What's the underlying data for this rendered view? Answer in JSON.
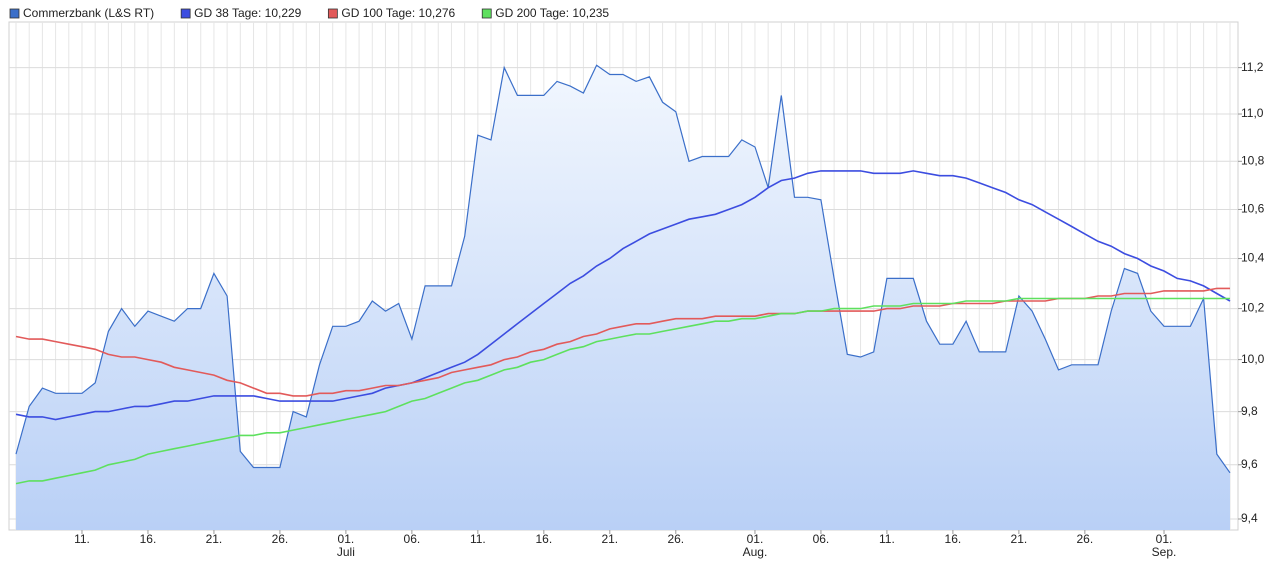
{
  "chart_data": {
    "type": "line",
    "ylog": true,
    "grid": true,
    "legend": "top-left",
    "ylim": [
      9.36,
      11.4
    ],
    "yticks": [
      {
        "value": 9.4,
        "label": "9,4"
      },
      {
        "value": 9.6,
        "label": "9,6"
      },
      {
        "value": 9.8,
        "label": "9,8"
      },
      {
        "value": 10.0,
        "label": "10,0"
      },
      {
        "value": 10.2,
        "label": "10,2"
      },
      {
        "value": 10.4,
        "label": "10,4"
      },
      {
        "value": 10.6,
        "label": "10,6"
      },
      {
        "value": 10.8,
        "label": "10,8"
      },
      {
        "value": 11.0,
        "label": "11,0"
      },
      {
        "value": 11.2,
        "label": "11,2"
      }
    ],
    "categories": [
      null,
      null,
      null,
      null,
      null,
      "11.",
      null,
      null,
      null,
      null,
      "16.",
      null,
      null,
      null,
      null,
      "21.",
      null,
      null,
      null,
      null,
      "26.",
      null,
      null,
      null,
      null,
      "01.",
      null,
      null,
      null,
      null,
      "06.",
      null,
      null,
      null,
      null,
      "11.",
      null,
      null,
      null,
      null,
      "16.",
      null,
      null,
      null,
      null,
      "21.",
      null,
      null,
      null,
      null,
      "26.",
      null,
      null,
      null,
      null,
      null,
      "01.",
      null,
      null,
      null,
      null,
      "06.",
      null,
      null,
      null,
      null,
      "11.",
      null,
      null,
      null,
      null,
      "16.",
      null,
      null,
      null,
      null,
      "21.",
      null,
      null,
      null,
      null,
      "26.",
      null,
      null,
      null,
      null,
      null,
      "01.",
      null,
      null,
      null,
      null,
      null
    ],
    "months": [
      null,
      null,
      null,
      null,
      null,
      null,
      null,
      null,
      null,
      null,
      null,
      null,
      null,
      null,
      null,
      null,
      null,
      null,
      null,
      null,
      null,
      null,
      null,
      null,
      null,
      "Juli",
      null,
      null,
      null,
      null,
      null,
      null,
      null,
      null,
      null,
      null,
      null,
      null,
      null,
      null,
      null,
      null,
      null,
      null,
      null,
      null,
      null,
      null,
      null,
      null,
      null,
      null,
      null,
      null,
      null,
      null,
      "Aug.",
      null,
      null,
      null,
      null,
      null,
      null,
      null,
      null,
      null,
      null,
      null,
      null,
      null,
      null,
      null,
      null,
      null,
      null,
      null,
      null,
      null,
      null,
      null,
      null,
      null,
      null,
      null,
      null,
      null,
      null,
      "Sep.",
      null,
      null,
      null,
      null,
      null
    ],
    "series": [
      {
        "name": "Commerzbank (L&S RT)",
        "color": "#3b6fc9",
        "area": true,
        "values": [
          9.64,
          9.82,
          9.89,
          9.87,
          9.87,
          9.87,
          9.91,
          10.11,
          10.2,
          10.13,
          10.19,
          10.17,
          10.15,
          10.2,
          10.2,
          10.34,
          10.25,
          9.65,
          9.59,
          9.59,
          9.59,
          9.8,
          9.78,
          9.98,
          10.13,
          10.13,
          10.15,
          10.23,
          10.19,
          10.22,
          10.08,
          10.29,
          10.29,
          10.29,
          10.49,
          10.91,
          10.89,
          11.2,
          11.08,
          11.08,
          11.08,
          11.14,
          11.12,
          11.09,
          11.21,
          11.17,
          11.17,
          11.14,
          11.16,
          11.05,
          11.01,
          10.8,
          10.82,
          10.82,
          10.82,
          10.89,
          10.86,
          10.69,
          11.08,
          10.65,
          10.65,
          10.64,
          10.32,
          10.02,
          10.01,
          10.03,
          10.32,
          10.32,
          10.32,
          10.15,
          10.06,
          10.06,
          10.15,
          10.03,
          10.03,
          10.03,
          10.25,
          10.19,
          10.08,
          9.96,
          9.98,
          9.98,
          9.98,
          10.19,
          10.36,
          10.34,
          10.19,
          10.13,
          10.13,
          10.13,
          10.24,
          9.64,
          9.57
        ]
      },
      {
        "name": "GD 38 Tage: 10,229",
        "color": "#3c4de0",
        "values": [
          9.79,
          9.78,
          9.78,
          9.77,
          9.78,
          9.79,
          9.8,
          9.8,
          9.81,
          9.82,
          9.82,
          9.83,
          9.84,
          9.84,
          9.85,
          9.86,
          9.86,
          9.86,
          9.86,
          9.85,
          9.84,
          9.84,
          9.84,
          9.84,
          9.84,
          9.85,
          9.86,
          9.87,
          9.89,
          9.9,
          9.91,
          9.93,
          9.95,
          9.97,
          9.99,
          10.02,
          10.06,
          10.1,
          10.14,
          10.18,
          10.22,
          10.26,
          10.3,
          10.33,
          10.37,
          10.4,
          10.44,
          10.47,
          10.5,
          10.52,
          10.54,
          10.56,
          10.57,
          10.58,
          10.6,
          10.62,
          10.65,
          10.69,
          10.72,
          10.73,
          10.75,
          10.76,
          10.76,
          10.76,
          10.76,
          10.75,
          10.75,
          10.75,
          10.76,
          10.75,
          10.74,
          10.74,
          10.73,
          10.71,
          10.69,
          10.67,
          10.64,
          10.62,
          10.59,
          10.56,
          10.53,
          10.5,
          10.47,
          10.45,
          10.42,
          10.4,
          10.37,
          10.35,
          10.32,
          10.31,
          10.29,
          10.26,
          10.23
        ]
      },
      {
        "name": "GD 100 Tage: 10,276",
        "color": "#e25a5a",
        "values": [
          10.09,
          10.08,
          10.08,
          10.07,
          10.06,
          10.05,
          10.04,
          10.02,
          10.01,
          10.01,
          10.0,
          9.99,
          9.97,
          9.96,
          9.95,
          9.94,
          9.92,
          9.91,
          9.89,
          9.87,
          9.87,
          9.86,
          9.86,
          9.87,
          9.87,
          9.88,
          9.88,
          9.89,
          9.9,
          9.9,
          9.91,
          9.92,
          9.93,
          9.95,
          9.96,
          9.97,
          9.98,
          10.0,
          10.01,
          10.03,
          10.04,
          10.06,
          10.07,
          10.09,
          10.1,
          10.12,
          10.13,
          10.14,
          10.14,
          10.15,
          10.16,
          10.16,
          10.16,
          10.17,
          10.17,
          10.17,
          10.17,
          10.18,
          10.18,
          10.18,
          10.19,
          10.19,
          10.19,
          10.19,
          10.19,
          10.19,
          10.2,
          10.2,
          10.21,
          10.21,
          10.21,
          10.22,
          10.22,
          10.22,
          10.22,
          10.23,
          10.23,
          10.23,
          10.23,
          10.24,
          10.24,
          10.24,
          10.25,
          10.25,
          10.26,
          10.26,
          10.26,
          10.27,
          10.27,
          10.27,
          10.27,
          10.28,
          10.28
        ]
      },
      {
        "name": "GD 200 Tage: 10,235",
        "color": "#5ee05e",
        "values": [
          9.53,
          9.54,
          9.54,
          9.55,
          9.56,
          9.57,
          9.58,
          9.6,
          9.61,
          9.62,
          9.64,
          9.65,
          9.66,
          9.67,
          9.68,
          9.69,
          9.7,
          9.71,
          9.71,
          9.72,
          9.72,
          9.73,
          9.74,
          9.75,
          9.76,
          9.77,
          9.78,
          9.79,
          9.8,
          9.82,
          9.84,
          9.85,
          9.87,
          9.89,
          9.91,
          9.92,
          9.94,
          9.96,
          9.97,
          9.99,
          10.0,
          10.02,
          10.04,
          10.05,
          10.07,
          10.08,
          10.09,
          10.1,
          10.1,
          10.11,
          10.12,
          10.13,
          10.14,
          10.15,
          10.15,
          10.16,
          10.16,
          10.17,
          10.18,
          10.18,
          10.19,
          10.19,
          10.2,
          10.2,
          10.2,
          10.21,
          10.21,
          10.21,
          10.22,
          10.22,
          10.22,
          10.22,
          10.23,
          10.23,
          10.23,
          10.23,
          10.24,
          10.24,
          10.24,
          10.24,
          10.24,
          10.24,
          10.24,
          10.24,
          10.24,
          10.24,
          10.24,
          10.24,
          10.24,
          10.24,
          10.24,
          10.24,
          10.24
        ]
      }
    ]
  }
}
